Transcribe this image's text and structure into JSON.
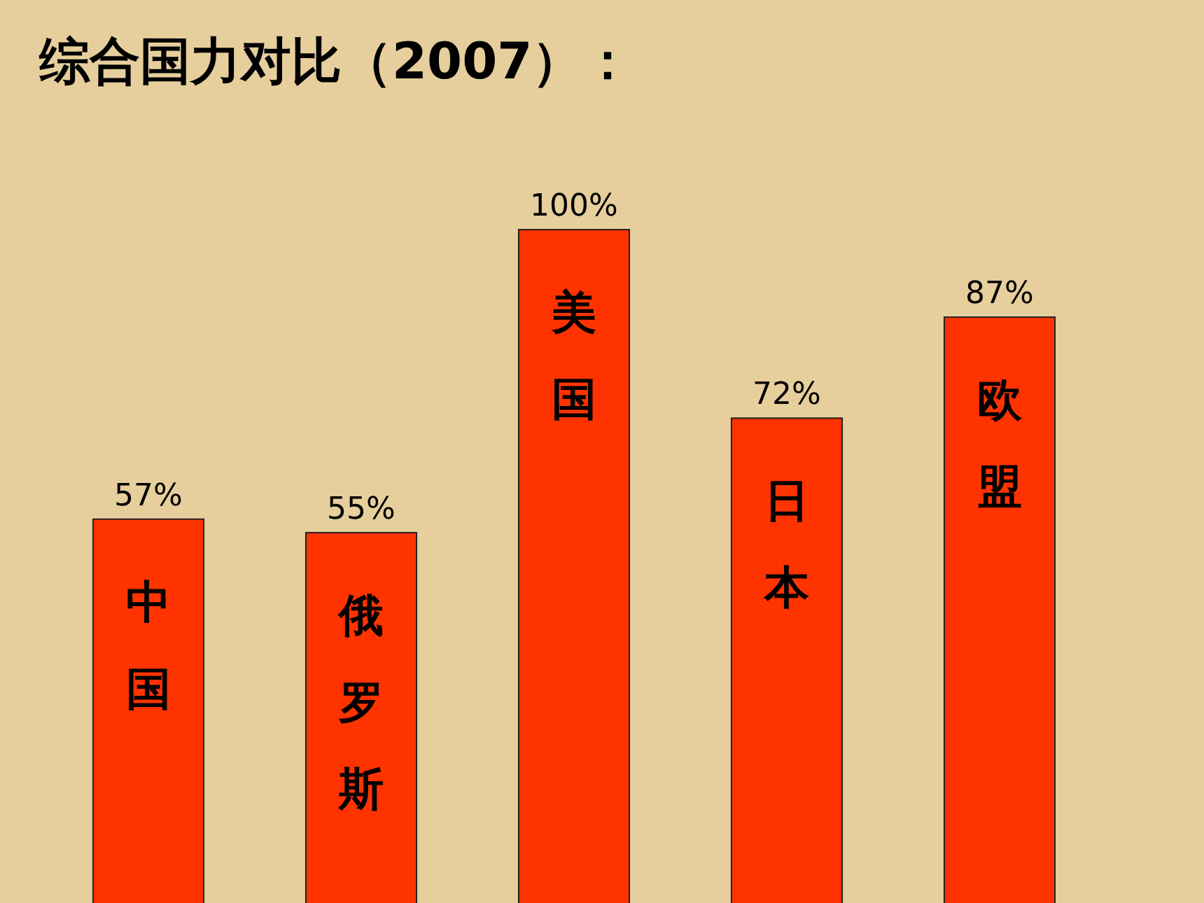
{
  "chart_data": {
    "type": "bar",
    "title": "综合国力对比（2007）：",
    "categories": [
      "中国",
      "俄罗斯",
      "美国",
      "日本",
      "欧盟"
    ],
    "values": [
      57,
      55,
      100,
      72,
      87
    ],
    "value_labels": [
      "57%",
      "55%",
      "100%",
      "72%",
      "87%"
    ],
    "color": "#ff3300"
  }
}
